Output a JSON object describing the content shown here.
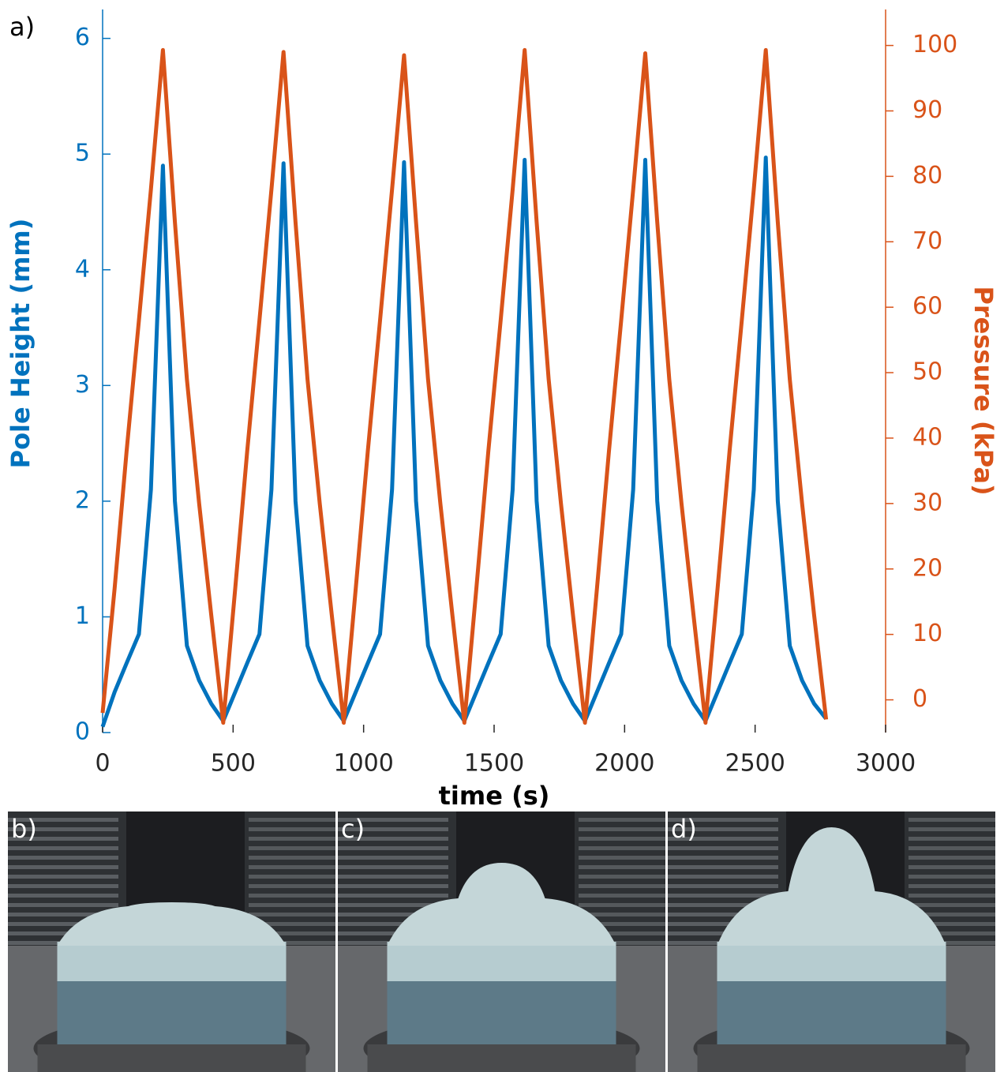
{
  "panel_label": "a)",
  "chart_data": {
    "type": "line",
    "xlabel": "time (s)",
    "ylabel": "Pole Height (mm)",
    "y2label": "Pressure (kPa)",
    "x": [
      0,
      46,
      92,
      139,
      185,
      231,
      277,
      323,
      370,
      416,
      462,
      508,
      554,
      601,
      647,
      693,
      739,
      785,
      832,
      878,
      924,
      970,
      1016,
      1063,
      1109,
      1155,
      1201,
      1247,
      1294,
      1340,
      1386,
      1432,
      1478,
      1525,
      1571,
      1617,
      1663,
      1709,
      1756,
      1802,
      1848,
      1894,
      1940,
      1987,
      2033,
      2079,
      2125,
      2171,
      2218,
      2264,
      2310,
      2356,
      2402,
      2449,
      2495,
      2541,
      2587,
      2633,
      2680,
      2726,
      2772
    ],
    "series": [
      {
        "name": "Pole Height (mm)",
        "color": "#0072BD",
        "axis": "y",
        "values": [
          0.05,
          0.35,
          0.6,
          0.85,
          2.1,
          4.9,
          2.0,
          0.75,
          0.45,
          0.25,
          0.1,
          0.35,
          0.6,
          0.85,
          2.1,
          4.92,
          2.0,
          0.75,
          0.45,
          0.25,
          0.1,
          0.35,
          0.6,
          0.85,
          2.1,
          4.93,
          2.0,
          0.75,
          0.45,
          0.25,
          0.1,
          0.35,
          0.6,
          0.85,
          2.1,
          4.95,
          2.0,
          0.75,
          0.45,
          0.25,
          0.1,
          0.35,
          0.6,
          0.85,
          2.1,
          4.95,
          2.0,
          0.75,
          0.45,
          0.25,
          0.1,
          0.35,
          0.6,
          0.85,
          2.1,
          4.97,
          2.0,
          0.75,
          0.45,
          0.25,
          0.12
        ]
      },
      {
        "name": "Pressure (kPa)",
        "color": "#D95319",
        "axis": "y2",
        "values": [
          -2,
          17,
          38,
          58,
          78,
          99.3,
          73,
          49,
          30,
          13,
          -3.5,
          17,
          38,
          58,
          78,
          99,
          73,
          49,
          30,
          13,
          -3.5,
          17,
          38,
          58,
          78,
          98.5,
          73,
          49,
          30,
          13,
          -3.5,
          17,
          38,
          58,
          78,
          99.3,
          73,
          49,
          30,
          13,
          -3.5,
          17,
          38,
          58,
          78,
          98.8,
          73,
          49,
          30,
          13,
          -3.5,
          17,
          38,
          58,
          78,
          99.3,
          73,
          49,
          30,
          13,
          -3
        ]
      }
    ],
    "xlim": [
      0,
      3000
    ],
    "xticks": [
      0,
      500,
      1000,
      1500,
      2000,
      2500,
      3000
    ],
    "ylim": [
      0,
      6.25
    ],
    "yticks": [
      0,
      1,
      2,
      3,
      4,
      5,
      6
    ],
    "y2lim": [
      -5,
      105.5
    ],
    "y2ticks": [
      0,
      10,
      20,
      30,
      40,
      50,
      60,
      70,
      80,
      90,
      100
    ]
  },
  "photos": [
    {
      "label": "b)"
    },
    {
      "label": "c)"
    },
    {
      "label": "d)"
    }
  ]
}
